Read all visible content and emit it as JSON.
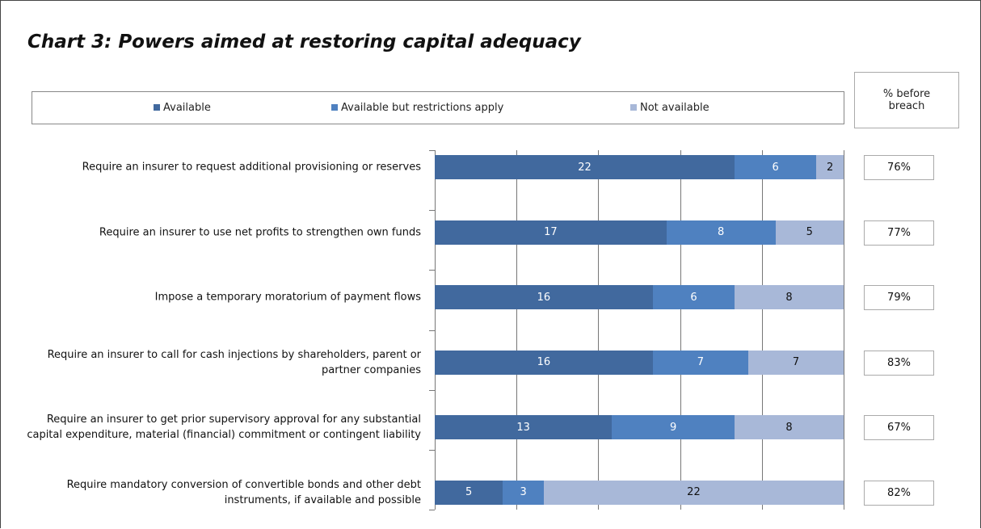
{
  "chart_data": {
    "type": "stacked-bar-horizontal",
    "title": "Chart 3: Powers aimed at restoring capital adequacy",
    "categories": [
      "Require an insurer to request additional provisioning or reserves",
      "Require an insurer to use net profits to strengthen own funds",
      "Impose a temporary moratorium of payment flows",
      "Require an insurer to call for cash injections by shareholders, parent or partner companies",
      "Require an insurer to get prior supervisory approval for any substantial capital expenditure, material (financial) commitment or contingent liability",
      "Require mandatory conversion of convertible bonds and other debt instruments, if available and possible"
    ],
    "series": [
      {
        "name": "Available",
        "color": "#41699e",
        "values": [
          22,
          17,
          16,
          16,
          13,
          5
        ]
      },
      {
        "name": "Available but restrictions apply",
        "color": "#4f81c0",
        "values": [
          6,
          8,
          6,
          7,
          9,
          3
        ]
      },
      {
        "name": "Not available",
        "color": "#a8b8d8",
        "values": [
          2,
          5,
          8,
          7,
          8,
          22
        ]
      }
    ],
    "xlim": [
      0,
      30
    ],
    "xticks": [
      0,
      6,
      12,
      18,
      24,
      30
    ],
    "grid": true,
    "breach_title": "% before breach",
    "breach_values": [
      76,
      77,
      79,
      83,
      67,
      82
    ],
    "breach_labels": [
      "76%",
      "77%",
      "79%",
      "83%",
      "67%",
      "82%"
    ]
  }
}
